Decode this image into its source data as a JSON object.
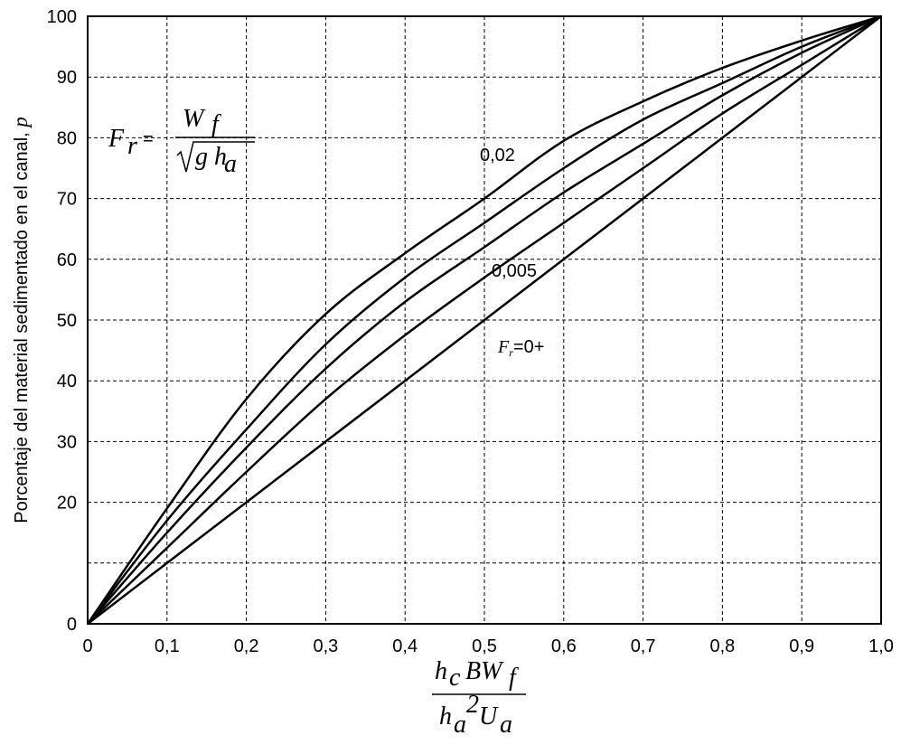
{
  "chart_data": {
    "type": "line",
    "ylabel": "Porcentaje del material sedimentado en el canal, ",
    "ylabel_var": "p",
    "formula": [
      "F",
      "r",
      "=",
      "W",
      "f",
      "g h",
      "a"
    ],
    "xlabel": [
      "h",
      "c",
      "BW",
      "f",
      "h",
      "a",
      "2",
      "U",
      "a"
    ],
    "x": [
      0,
      0.1,
      0.2,
      0.3,
      0.4,
      0.5,
      0.6,
      0.7,
      0.8,
      0.9,
      1.0
    ],
    "series": [
      {
        "name": "0,02",
        "color": "#000000",
        "values": [
          0,
          19,
          37,
          51,
          61,
          70,
          79.5,
          86,
          91.5,
          96,
          100
        ]
      },
      {
        "name": null,
        "color": "#000000",
        "values": [
          0,
          17,
          32,
          46,
          57,
          66,
          75,
          83,
          89,
          95,
          100
        ]
      },
      {
        "name": null,
        "color": "#000000",
        "values": [
          0,
          15,
          29,
          42,
          53,
          62,
          71,
          79,
          87,
          94,
          100
        ]
      },
      {
        "name": "0,005",
        "color": "#000000",
        "values": [
          0,
          12.5,
          25,
          37,
          47.5,
          57,
          66,
          75,
          84,
          92,
          100
        ]
      },
      {
        "name": "Fr=0+",
        "color": "#000000",
        "values": [
          0,
          10,
          20,
          30,
          40,
          50,
          60,
          70,
          80,
          90,
          100
        ]
      }
    ],
    "xlim": [
      0,
      1.0
    ],
    "xticks": [
      0,
      {
        "value": 0.1,
        "label": "0,1"
      },
      {
        "value": 0.2,
        "label": "0,2"
      },
      {
        "value": 0.3,
        "label": "0,3"
      },
      {
        "value": 0.4,
        "label": "0,4"
      },
      {
        "value": 0.5,
        "label": "0,5"
      },
      {
        "value": 0.6,
        "label": "0,6"
      },
      {
        "value": 0.7,
        "label": "0,7"
      },
      {
        "value": 0.8,
        "label": "0,8"
      },
      {
        "value": 0.9,
        "label": "0,9"
      },
      {
        "value": 1.0,
        "label": "1,0"
      }
    ],
    "ylim": [
      0,
      100
    ],
    "yticks": [
      0,
      {
        "value": 10,
        "label": null
      },
      20,
      30,
      40,
      50,
      60,
      70,
      80,
      90,
      100
    ],
    "grid": true
  }
}
